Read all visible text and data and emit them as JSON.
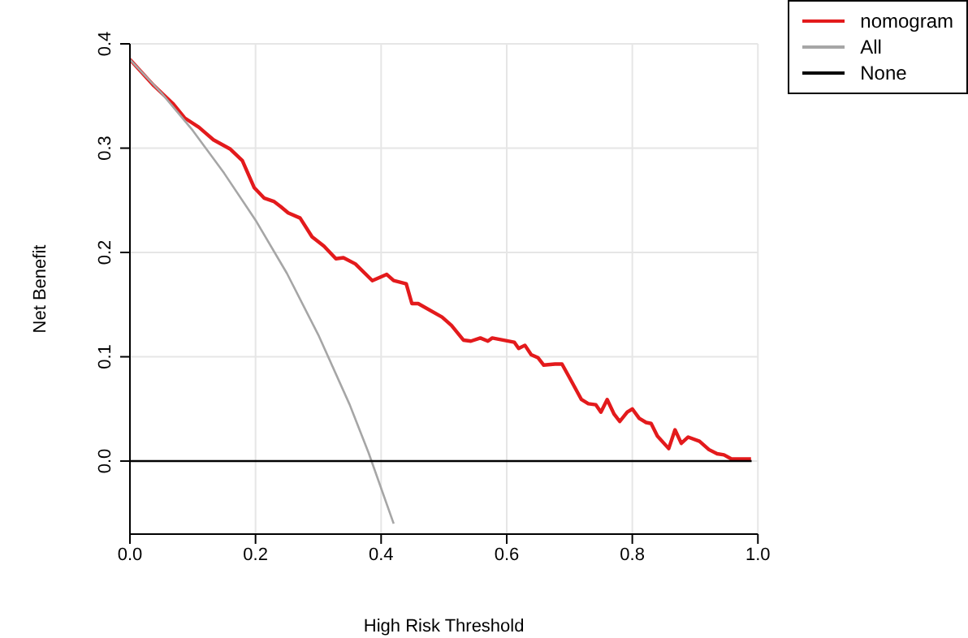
{
  "chart_data": {
    "type": "line",
    "xlabel": "High Risk Threshold",
    "ylabel": "Net Benefit",
    "xlim": [
      0,
      1
    ],
    "ylim": [
      -0.07,
      0.4
    ],
    "xticks": [
      {
        "value": 0,
        "label": "0.0"
      },
      0.2,
      0.4,
      0.6,
      0.8,
      {
        "value": 1,
        "label": "1.0"
      }
    ],
    "yticks": [
      {
        "value": 0,
        "label": "0.0"
      },
      0.1,
      0.2,
      0.3,
      0.4
    ],
    "grid": true,
    "legend": "top right",
    "marker": "none",
    "line_style": "solid",
    "series": [
      {
        "name": "nomogram",
        "color": "#e31a1c",
        "x": [
          0,
          0.038,
          0.068,
          0.087,
          0.11,
          0.133,
          0.16,
          0.179,
          0.198,
          0.214,
          0.229,
          0.24,
          0.252,
          0.271,
          0.29,
          0.309,
          0.328,
          0.34,
          0.359,
          0.386,
          0.409,
          0.42,
          0.44,
          0.449,
          0.459,
          0.497,
          0.512,
          0.531,
          0.543,
          0.558,
          0.57,
          0.577,
          0.612,
          0.619,
          0.629,
          0.639,
          0.65,
          0.659,
          0.677,
          0.688,
          0.7,
          0.719,
          0.73,
          0.742,
          0.75,
          0.76,
          0.771,
          0.78,
          0.792,
          0.8,
          0.811,
          0.822,
          0.83,
          0.84,
          0.858,
          0.868,
          0.878,
          0.889,
          0.907,
          0.922,
          0.935,
          0.946,
          0.958,
          0.989
        ],
        "values": [
          0.385,
          0.36,
          0.343,
          0.329,
          0.32,
          0.308,
          0.299,
          0.288,
          0.262,
          0.252,
          0.249,
          0.244,
          0.238,
          0.233,
          0.215,
          0.206,
          0.194,
          0.195,
          0.189,
          0.173,
          0.179,
          0.173,
          0.17,
          0.151,
          0.151,
          0.138,
          0.13,
          0.116,
          0.115,
          0.118,
          0.115,
          0.118,
          0.114,
          0.108,
          0.111,
          0.102,
          0.099,
          0.092,
          0.093,
          0.093,
          0.08,
          0.059,
          0.055,
          0.054,
          0.047,
          0.059,
          0.045,
          0.038,
          0.047,
          0.05,
          0.041,
          0.037,
          0.036,
          0.024,
          0.012,
          0.03,
          0.017,
          0.023,
          0.019,
          0.011,
          0.007,
          0.006,
          0.002,
          0.002
        ]
      },
      {
        "name": "All",
        "color": "#a6a6a6",
        "x": [
          0,
          0.05,
          0.1,
          0.15,
          0.2,
          0.25,
          0.3,
          0.35,
          0.38,
          0.42
        ],
        "values": [
          0.385,
          0.353,
          0.317,
          0.276,
          0.231,
          0.18,
          0.121,
          0.054,
          0.008,
          -0.06
        ]
      },
      {
        "name": "None",
        "color": "#000000",
        "x": [
          0,
          0.99
        ],
        "values": [
          0,
          0
        ]
      }
    ]
  }
}
